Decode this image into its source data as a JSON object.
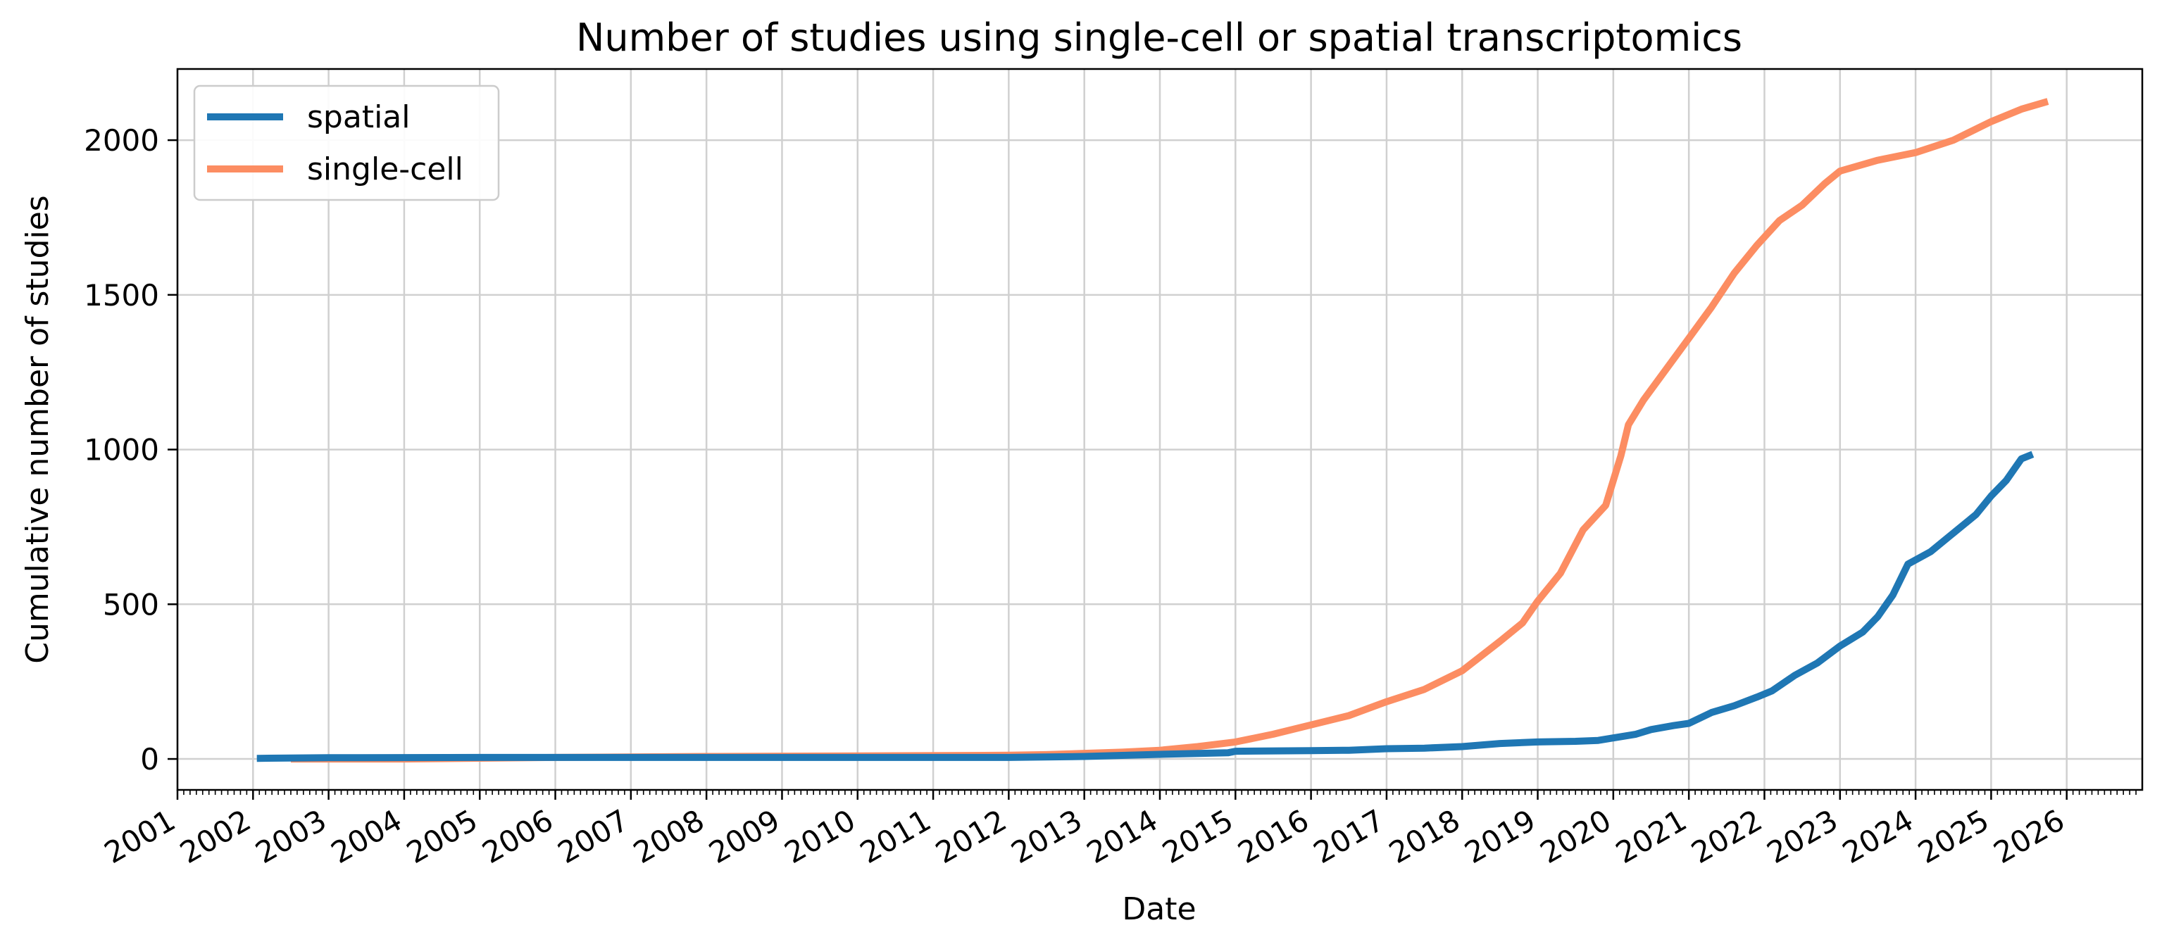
{
  "chart_data": {
    "type": "line",
    "title": "Number of studies using single-cell or spatial transcriptomics",
    "xlabel": "Date",
    "ylabel": "Cumulative number of studies",
    "xlim": [
      2001.0,
      2027.0
    ],
    "ylim": [
      -100,
      2230
    ],
    "x_ticks": [
      2001,
      2002,
      2003,
      2004,
      2005,
      2006,
      2007,
      2008,
      2009,
      2010,
      2011,
      2012,
      2013,
      2014,
      2015,
      2016,
      2017,
      2018,
      2019,
      2020,
      2021,
      2022,
      2023,
      2024,
      2025,
      2026
    ],
    "x_tick_labels": [
      "2001",
      "2002",
      "2003",
      "2004",
      "2005",
      "2006",
      "2007",
      "2008",
      "2009",
      "2010",
      "2011",
      "2012",
      "2013",
      "2014",
      "2015",
      "2016",
      "2017",
      "2018",
      "2019",
      "2020",
      "2021",
      "2022",
      "2023",
      "2024",
      "2025",
      "2026"
    ],
    "y_ticks": [
      0,
      500,
      1000,
      1500,
      2000
    ],
    "y_tick_labels": [
      "0",
      "500",
      "1000",
      "1500",
      "2000"
    ],
    "grid": true,
    "legend": {
      "placement": "top-left"
    },
    "series": [
      {
        "name": "spatial",
        "color": "#1f77b4",
        "x": [
          2002.05,
          2003.0,
          2005.0,
          2008.0,
          2010.0,
          2012.0,
          2013.0,
          2014.0,
          2014.9,
          2015.0,
          2016.0,
          2016.5,
          2017.0,
          2017.5,
          2018.0,
          2018.5,
          2019.0,
          2019.5,
          2019.8,
          2020.0,
          2020.3,
          2020.5,
          2020.8,
          2021.0,
          2021.3,
          2021.6,
          2021.9,
          2022.1,
          2022.4,
          2022.7,
          2023.0,
          2023.3,
          2023.5,
          2023.7,
          2023.9,
          2024.2,
          2024.5,
          2024.8,
          2025.0,
          2025.2,
          2025.4,
          2025.55
        ],
        "y": [
          2,
          4,
          5,
          5,
          5,
          5,
          8,
          15,
          20,
          25,
          27,
          28,
          33,
          35,
          40,
          50,
          55,
          57,
          60,
          68,
          80,
          95,
          108,
          115,
          150,
          172,
          200,
          220,
          270,
          310,
          365,
          410,
          460,
          530,
          630,
          670,
          730,
          790,
          850,
          900,
          970,
          985
        ]
      },
      {
        "name": "single-cell",
        "color": "#fc8d62",
        "x": [
          2002.5,
          2004.0,
          2006.0,
          2008.0,
          2010.0,
          2012.0,
          2012.5,
          2013.0,
          2013.5,
          2014.0,
          2014.5,
          2015.0,
          2015.5,
          2016.0,
          2016.5,
          2017.0,
          2017.5,
          2018.0,
          2018.5,
          2018.8,
          2019.0,
          2019.3,
          2019.6,
          2019.9,
          2020.1,
          2020.2,
          2020.4,
          2020.7,
          2021.0,
          2021.3,
          2021.6,
          2021.9,
          2022.2,
          2022.5,
          2022.8,
          2023.0,
          2023.5,
          2024.0,
          2024.5,
          2025.0,
          2025.4,
          2025.75
        ],
        "y": [
          0,
          0,
          5,
          8,
          10,
          12,
          14,
          18,
          22,
          28,
          40,
          55,
          80,
          110,
          140,
          185,
          225,
          285,
          380,
          440,
          510,
          600,
          740,
          820,
          980,
          1080,
          1160,
          1260,
          1360,
          1460,
          1570,
          1660,
          1740,
          1790,
          1860,
          1900,
          1935,
          1960,
          2000,
          2060,
          2100,
          2125
        ]
      }
    ]
  }
}
